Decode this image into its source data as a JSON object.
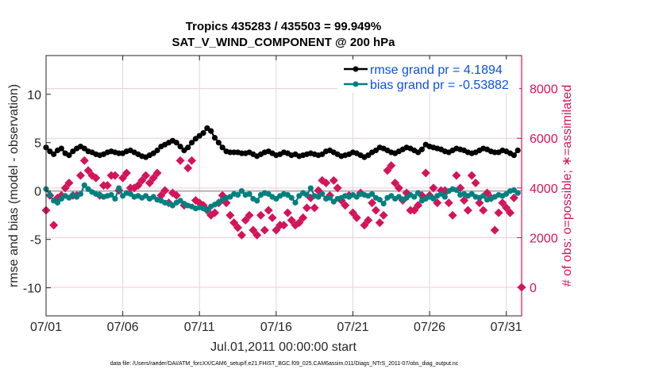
{
  "chart_data": {
    "type": "line",
    "title": [
      "Tropics 435283 / 435503 = 99.949%",
      "SAT_V_WIND_COMPONENT @ 200 hPa"
    ],
    "xlabel": "Jul.01,2011 00:00:00 start",
    "ylabel_left": "rmse and bias (model - observation)",
    "ylabel_right": "# of obs: o=possible; ∗=assimilated",
    "footnote": "data file: /Users/raeder/DAI/ATM_forcXX/CAM6_setup/f.e21.FHIST_BGC.f09_025.CAM6assim.011/Diags_NTrS_2011-07/obs_diag_output.nc",
    "x_ticks": [
      "07/01",
      "07/06",
      "07/11",
      "07/16",
      "07/21",
      "07/26",
      "07/31"
    ],
    "x_tick_days": [
      0,
      5,
      10,
      15,
      20,
      25,
      30
    ],
    "xlim_days": [
      0,
      31
    ],
    "ylim_left": [
      -12.9,
      14
    ],
    "yticks_left": [
      -10,
      -5,
      0,
      5,
      10
    ],
    "ylim_right": [
      -1150,
      9330
    ],
    "yticks_right": [
      0,
      2000,
      4000,
      6000,
      8000
    ],
    "grid": true,
    "legend_position": "top-right",
    "time_step_days": 0.25,
    "series": [
      {
        "name": "rmse grand pr = 4.1894",
        "color": "#000000",
        "axis": "left",
        "marker": "circle",
        "values": [
          4.5,
          4.1,
          3.8,
          4.2,
          4.4,
          3.9,
          3.7,
          4.1,
          4.4,
          4.6,
          4.4,
          4.1,
          4.0,
          3.8,
          3.7,
          3.8,
          4.0,
          4.1,
          4.0,
          3.9,
          3.9,
          4.1,
          4.2,
          4.0,
          3.8,
          3.6,
          3.5,
          3.7,
          3.9,
          4.2,
          4.6,
          4.8,
          5.0,
          5.2,
          5.0,
          4.6,
          4.2,
          4.5,
          5.0,
          5.4,
          5.7,
          6.0,
          6.5,
          6.2,
          5.5,
          5.0,
          4.5,
          4.1,
          4.0,
          4.0,
          4.0,
          3.9,
          3.9,
          4.0,
          3.8,
          3.6,
          3.8,
          4.0,
          4.1,
          3.9,
          3.7,
          3.8,
          4.0,
          3.9,
          3.7,
          3.8,
          3.6,
          3.7,
          3.8,
          3.9,
          3.8,
          3.7,
          3.8,
          4.1,
          4.2,
          4.0,
          3.8,
          3.6,
          3.7,
          3.8,
          4.0,
          3.9,
          3.7,
          3.5,
          3.7,
          4.0,
          4.2,
          4.5,
          4.4,
          4.2,
          4.0,
          3.9,
          4.1,
          4.3,
          4.5,
          4.4,
          4.2,
          4.0,
          4.3,
          4.8,
          4.6,
          4.5,
          4.4,
          4.3,
          4.1,
          4.0,
          4.2,
          4.4,
          4.3,
          4.2,
          4.0,
          3.9,
          4.0,
          4.2,
          4.4,
          4.3,
          4.1,
          4.0,
          4.0,
          4.2,
          4.1,
          3.9,
          3.7,
          4.2
        ]
      },
      {
        "name": "bias grand pr = -0.53882",
        "color": "#008080",
        "axis": "left",
        "marker": "circle",
        "values": [
          0.2,
          -0.4,
          -1.0,
          -1.2,
          -0.8,
          -0.5,
          -0.7,
          -0.4,
          -0.6,
          -0.3,
          0.6,
          0.2,
          -0.1,
          -0.3,
          -0.4,
          -0.6,
          -0.5,
          -0.4,
          -0.8,
          0.3,
          -0.5,
          -0.2,
          -0.3,
          -0.6,
          -0.5,
          -0.7,
          -0.5,
          -0.8,
          -0.6,
          -0.9,
          -1.0,
          -1.2,
          -1.3,
          -1.5,
          -1.2,
          -1.0,
          -1.3,
          -1.5,
          -1.6,
          -1.8,
          -1.7,
          -1.8,
          -2.0,
          -1.6,
          -1.4,
          -1.2,
          -0.9,
          -0.7,
          -0.6,
          -0.3,
          -0.4,
          0.0,
          -0.4,
          -0.3,
          -0.8,
          -1.0,
          -0.4,
          -0.2,
          -0.3,
          -0.6,
          -0.8,
          -0.5,
          -0.3,
          -0.4,
          -0.7,
          -1.2,
          -0.5,
          -0.2,
          -0.4,
          0.3,
          -0.5,
          -0.6,
          -0.3,
          -0.8,
          -0.7,
          -1.1,
          -0.8,
          -0.7,
          -0.5,
          -0.6,
          -0.4,
          -0.6,
          -0.3,
          -0.4,
          -0.5,
          -0.3,
          -0.7,
          -0.9,
          -1.3,
          -0.7,
          -0.5,
          -0.8,
          -0.6,
          -0.9,
          -0.7,
          -0.4,
          -0.6,
          -0.2,
          -1.0,
          -0.8,
          -0.6,
          -0.8,
          -0.5,
          -0.3,
          -0.6,
          0.0,
          0.2,
          0.1,
          -0.4,
          -0.3,
          -0.5,
          -0.3,
          -0.6,
          -0.7,
          -0.5,
          -0.9,
          -0.8,
          -0.6,
          -0.4,
          -0.5,
          -0.3,
          0.0,
          0.1,
          -0.2
        ]
      },
      {
        "name": "# of obs",
        "color": "#d4145a",
        "axis": "right",
        "marker": "diamond",
        "values": [
          3100,
          3700,
          2500,
          3600,
          3700,
          4000,
          4200,
          3700,
          3700,
          4500,
          5100,
          4700,
          4500,
          4400,
          3700,
          4100,
          4100,
          4500,
          4500,
          3900,
          4400,
          4600,
          4000,
          4000,
          4100,
          4300,
          4500,
          4200,
          4400,
          4600,
          3700,
          3900,
          3400,
          3800,
          3700,
          5100,
          3300,
          4800,
          5100,
          3500,
          3400,
          3300,
          3100,
          2900,
          3000,
          3400,
          3700,
          3400,
          2900,
          2600,
          2400,
          2100,
          2700,
          2900,
          2300,
          2100,
          2900,
          2300,
          3100,
          2800,
          2300,
          2500,
          2500,
          3000,
          2700,
          2500,
          2600,
          2800,
          3200,
          3600,
          3200,
          3900,
          4300,
          4200,
          3700,
          4300,
          4000,
          3500,
          3300,
          3700,
          3000,
          2800,
          3800,
          2500,
          2700,
          3400,
          3100,
          2600,
          2900,
          4700,
          4900,
          4200,
          4000,
          3500,
          3800,
          3100,
          3100,
          3300,
          3700,
          4600,
          3700,
          4000,
          3400,
          3900,
          3900,
          3400,
          2900,
          4500,
          4000,
          3500,
          3100,
          4500,
          4200,
          3400,
          3100,
          3800,
          3600,
          2300,
          3000,
          3400,
          3200,
          3000,
          3600,
          0
        ]
      }
    ]
  }
}
